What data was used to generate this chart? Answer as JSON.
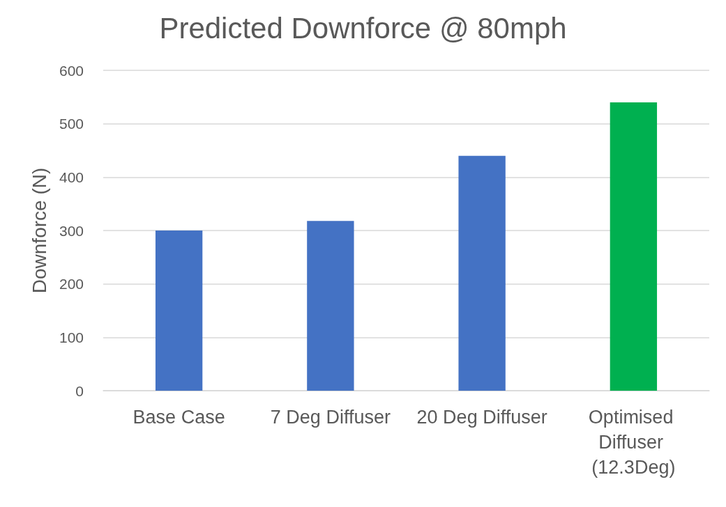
{
  "chart_data": {
    "type": "bar",
    "title": "Predicted Downforce @ 80mph",
    "ylabel": "Downforce (N)",
    "categories": [
      "Base Case",
      "7 Deg Diffuser",
      "20 Deg Diffuser",
      "Optimised Diffuser (12.3Deg)"
    ],
    "values": [
      300,
      318,
      440,
      540
    ],
    "colors": [
      "#4472c4",
      "#4472c4",
      "#4472c4",
      "#00b050"
    ],
    "ylim": [
      0,
      600
    ],
    "yticks": [
      0,
      100,
      200,
      300,
      400,
      500,
      600
    ],
    "grid": "y"
  }
}
